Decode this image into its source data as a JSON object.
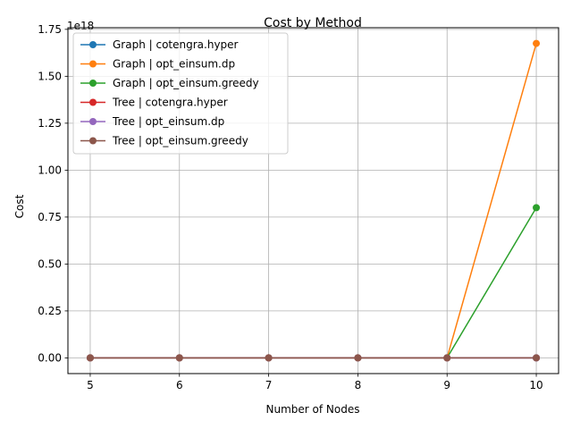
{
  "chart_data": {
    "type": "line",
    "title": "Cost by Method",
    "xlabel": "Number of Nodes",
    "ylabel": "Cost",
    "y_offset_label": "1e18",
    "x": [
      5,
      6,
      7,
      8,
      9,
      10
    ],
    "xlim": [
      4.75,
      10.25
    ],
    "ylim": [
      -0.08375,
      1.75875
    ],
    "xticks": [
      5,
      6,
      7,
      8,
      9,
      10
    ],
    "yticks": [
      0.0,
      0.25,
      0.5,
      0.75,
      1.0,
      1.25,
      1.5,
      1.75
    ],
    "ytick_labels": [
      "0.00",
      "0.25",
      "0.50",
      "0.75",
      "1.00",
      "1.25",
      "1.50",
      "1.75"
    ],
    "grid": true,
    "legend_position": "upper-left",
    "series": [
      {
        "name": "Graph | cotengra.hyper",
        "color": "#1f77b4",
        "values": [
          0,
          0,
          0,
          0,
          0,
          0
        ]
      },
      {
        "name": "Graph | opt_einsum.dp",
        "color": "#ff7f0e",
        "values": [
          0,
          0,
          0,
          0,
          0,
          1.675
        ]
      },
      {
        "name": "Graph | opt_einsum.greedy",
        "color": "#2ca02c",
        "values": [
          0,
          0,
          0,
          0,
          0,
          0.8
        ]
      },
      {
        "name": "Tree | cotengra.hyper",
        "color": "#d62728",
        "values": [
          0,
          0,
          0,
          0,
          0,
          0
        ]
      },
      {
        "name": "Tree | opt_einsum.dp",
        "color": "#9467bd",
        "values": [
          0,
          0,
          0,
          0,
          0,
          0
        ]
      },
      {
        "name": "Tree | opt_einsum.greedy",
        "color": "#8c564b",
        "values": [
          0,
          0,
          0,
          0,
          0,
          0
        ]
      }
    ]
  }
}
